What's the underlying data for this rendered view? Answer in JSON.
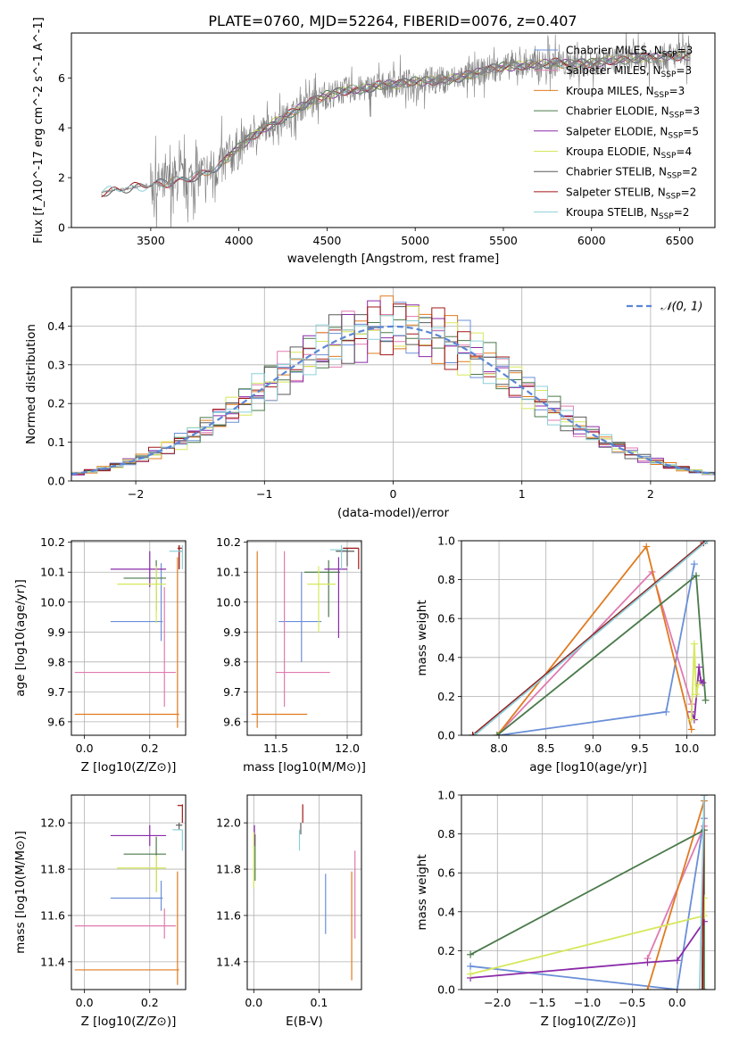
{
  "title": "PLATE=0760, MJD=52264, FIBERID=0076, z=0.407",
  "colors": {
    "Chabrier MILES": "#6a8fd8",
    "Salpeter MILES": "#e07ab0",
    "Kroupa MILES": "#e07b1f",
    "Chabrier ELODIE": "#4a7a4a",
    "Salpeter ELODIE": "#8a2aa8",
    "Kroupa ELODIE": "#d6e85a",
    "Chabrier STELIB": "#5a5a5a",
    "Salpeter STELIB": "#a01818",
    "Kroupa STELIB": "#8cd0d8",
    "data": "#808080"
  },
  "chart_data": [
    {
      "id": "spectrum",
      "type": "line",
      "xlabel": "wavelength [Angstrom, rest frame]",
      "ylabel": "Flux [f_λ10^-17 erg cm^-2 s^-1 A^-1]",
      "xlim": [
        3050,
        6700
      ],
      "ylim": [
        0,
        7.8
      ],
      "xticks": [
        3500,
        4000,
        4500,
        5000,
        5500,
        6000,
        6500
      ],
      "yticks": [
        0,
        2,
        4,
        6
      ],
      "legend": "top-right",
      "legend_entries": [
        {
          "label": "Chabrier MILES, N",
          "sub": "SSP",
          "suffix": "=3",
          "model": "Chabrier MILES"
        },
        {
          "label": "Salpeter MILES, N",
          "sub": "SSP",
          "suffix": "=3",
          "model": "Salpeter MILES"
        },
        {
          "label": "Kroupa MILES, N",
          "sub": "SSP",
          "suffix": "=3",
          "model": "Kroupa MILES"
        },
        {
          "label": "Chabrier ELODIE, N",
          "sub": "SSP",
          "suffix": "=3",
          "model": "Chabrier ELODIE"
        },
        {
          "label": "Salpeter ELODIE, N",
          "sub": "SSP",
          "suffix": "=5",
          "model": "Salpeter ELODIE"
        },
        {
          "label": "Kroupa ELODIE, N",
          "sub": "SSP",
          "suffix": "=4",
          "model": "Kroupa ELODIE"
        },
        {
          "label": "Chabrier STELIB, N",
          "sub": "SSP",
          "suffix": "=2",
          "model": "Chabrier STELIB"
        },
        {
          "label": "Salpeter STELIB, N",
          "sub": "SSP",
          "suffix": "=2",
          "model": "Salpeter STELIB"
        },
        {
          "label": "Kroupa STELIB, N",
          "sub": "SSP",
          "suffix": "=2",
          "model": "Kroupa STELIB"
        }
      ],
      "continuum": {
        "x": [
          3220,
          3300,
          3400,
          3500,
          3600,
          3700,
          3800,
          3900,
          3950,
          4000,
          4100,
          4200,
          4300,
          4400,
          4500,
          4600,
          4700,
          4800,
          4900,
          5000,
          5100,
          5200,
          5300,
          5400,
          5500,
          5600,
          5700,
          5800,
          5900,
          6000,
          6100,
          6200,
          6300,
          6400,
          6550
        ],
        "y": [
          1.4,
          1.5,
          1.6,
          1.7,
          1.8,
          1.95,
          2.15,
          2.5,
          2.9,
          3.2,
          3.8,
          4.2,
          4.6,
          5.0,
          5.3,
          5.5,
          5.55,
          5.7,
          5.75,
          5.85,
          5.9,
          5.95,
          6.1,
          6.3,
          6.45,
          6.5,
          6.55,
          6.6,
          6.55,
          6.6,
          6.7,
          6.75,
          6.8,
          6.85,
          6.9
        ]
      }
    },
    {
      "id": "residuals",
      "type": "line",
      "xlabel": "(data-model)/error",
      "ylabel": "Normed distribution",
      "xlim": [
        -2.5,
        2.5
      ],
      "ylim": [
        0,
        0.5
      ],
      "xticks": [
        -2,
        -1,
        0,
        1,
        2
      ],
      "yticks": [
        0.0,
        0.1,
        0.2,
        0.3,
        0.4
      ],
      "legend": "top-right",
      "legend_label": "𝒩(0, 1)",
      "grid": true
    },
    {
      "id": "age-vs-Z",
      "type": "scatter",
      "xlabel": "Z [log10(Z/Z⊙)]",
      "ylabel": "age [log10(age/yr)]",
      "xlim": [
        -0.04,
        0.31
      ],
      "ylim": [
        9.555,
        10.205
      ],
      "xticks": [
        0.0,
        0.2
      ],
      "yticks": [
        9.6,
        9.7,
        9.8,
        9.9,
        10.0,
        10.1,
        10.2
      ],
      "grid": true,
      "series": [
        {
          "model": "Chabrier MILES",
          "x": [
            0.08,
            0.24
          ],
          "y": 9.935,
          "yerr": [
            9.87,
            10.13
          ],
          "xc": 0.235
        },
        {
          "model": "Salpeter MILES",
          "x": [
            -0.03,
            0.28
          ],
          "y": 9.765,
          "yerr": [
            9.65,
            10.05
          ],
          "xc": 0.245
        },
        {
          "model": "Kroupa MILES",
          "x": [
            -0.03,
            0.29
          ],
          "y": 9.625,
          "yerr": [
            9.58,
            10.15
          ],
          "xc": 0.285
        },
        {
          "model": "Chabrier ELODIE",
          "x": [
            0.12,
            0.25
          ],
          "y": 10.08,
          "yerr": [
            9.97,
            10.14
          ],
          "xc": 0.22
        },
        {
          "model": "Salpeter ELODIE",
          "x": [
            0.08,
            0.25
          ],
          "y": 10.11,
          "yerr": [
            10.05,
            10.17
          ],
          "xc": 0.2
        },
        {
          "model": "Kroupa ELODIE",
          "x": [
            0.1,
            0.25
          ],
          "y": 10.06,
          "yerr": [
            9.93,
            10.12
          ],
          "xc": 0.22
        },
        {
          "model": "Chabrier STELIB",
          "x": [
            0.29,
            0.3
          ],
          "y": 10.17,
          "yerr": [
            10.11,
            10.19
          ],
          "xc": 0.29
        },
        {
          "model": "Salpeter STELIB",
          "x": [
            0.285,
            0.3
          ],
          "y": 10.18,
          "yerr": [
            10.11,
            10.19
          ],
          "xc": 0.29
        },
        {
          "model": "Kroupa STELIB",
          "x": [
            0.26,
            0.3
          ],
          "y": 10.17,
          "yerr": [
            10.11,
            10.19
          ],
          "xc": 0.3
        }
      ]
    },
    {
      "id": "age-vs-mass",
      "type": "scatter",
      "xlabel": "mass [log10(M/M⊙)]",
      "xlim": [
        11.3,
        12.1
      ],
      "ylim": [
        9.555,
        10.205
      ],
      "xticks": [
        11.5,
        12.0
      ],
      "yticks": [
        9.6,
        9.7,
        9.8,
        9.9,
        10.0,
        10.1,
        10.2
      ],
      "grid": true,
      "series": [
        {
          "model": "Chabrier MILES",
          "x": [
            11.52,
            11.82
          ],
          "y": 9.935,
          "yerr": [
            9.8,
            10.1
          ],
          "xc": 11.68
        },
        {
          "model": "Salpeter MILES",
          "x": [
            11.5,
            11.88
          ],
          "y": 9.765,
          "yerr": [
            9.65,
            10.17
          ],
          "xc": 11.56
        },
        {
          "model": "Kroupa MILES",
          "x": [
            11.33,
            11.72
          ],
          "y": 9.625,
          "yerr": [
            9.58,
            10.17
          ],
          "xc": 11.37
        },
        {
          "model": "Chabrier ELODIE",
          "x": [
            11.7,
            11.95
          ],
          "y": 10.1,
          "yerr": [
            9.95,
            10.14
          ],
          "xc": 11.87
        },
        {
          "model": "Salpeter ELODIE",
          "x": [
            11.84,
            12.0
          ],
          "y": 10.11,
          "yerr": [
            9.88,
            10.15
          ],
          "xc": 11.94
        },
        {
          "model": "Kroupa ELODIE",
          "x": [
            11.72,
            11.92
          ],
          "y": 10.06,
          "yerr": [
            9.9,
            10.12
          ],
          "xc": 11.8
        },
        {
          "model": "Chabrier STELIB",
          "x": [
            11.92,
            12.05
          ],
          "y": 10.17,
          "yerr": [
            10.12,
            10.18
          ],
          "xc": 12.0
        },
        {
          "model": "Salpeter STELIB",
          "x": [
            11.97,
            12.08
          ],
          "y": 10.18,
          "yerr": [
            10.11,
            10.18
          ],
          "xc": 12.08
        },
        {
          "model": "Kroupa STELIB",
          "x": [
            11.88,
            12.0
          ],
          "y": 10.175,
          "yerr": [
            10.11,
            10.19
          ],
          "xc": 11.96
        }
      ]
    },
    {
      "id": "mass-weight-vs-age",
      "type": "line",
      "xlabel": "age [log10(age/yr)]",
      "ylabel": "mass weight",
      "xlim": [
        7.6,
        10.3
      ],
      "ylim": [
        0,
        1.0
      ],
      "xticks": [
        8.0,
        8.5,
        9.0,
        9.5,
        10.0
      ],
      "yticks": [
        0.0,
        0.2,
        0.4,
        0.6,
        0.8,
        1.0
      ],
      "grid": true,
      "series": [
        {
          "model": "Chabrier MILES",
          "x": [
            8.0,
            9.78,
            10.08
          ],
          "y": [
            0.0,
            0.12,
            0.88
          ]
        },
        {
          "model": "Salpeter MILES",
          "x": [
            7.98,
            9.63,
            10.05
          ],
          "y": [
            0.0,
            0.84,
            0.16
          ]
        },
        {
          "model": "Kroupa MILES",
          "x": [
            7.98,
            9.57,
            10.05
          ],
          "y": [
            0.0,
            0.97,
            0.03
          ]
        },
        {
          "model": "Chabrier ELODIE",
          "x": [
            7.98,
            10.1,
            10.2
          ],
          "y": [
            0.0,
            0.82,
            0.18
          ]
        },
        {
          "model": "Salpeter ELODIE",
          "x": [
            10.05,
            10.08,
            10.13,
            10.15,
            10.17
          ],
          "y": [
            0.12,
            0.08,
            0.35,
            0.28,
            0.27
          ]
        },
        {
          "model": "Kroupa ELODIE",
          "x": [
            10.05,
            10.08,
            10.1,
            10.12
          ],
          "y": [
            0.08,
            0.47,
            0.21,
            0.26
          ]
        },
        {
          "model": "Chabrier STELIB",
          "x": [
            7.72,
            10.2
          ],
          "y": [
            0.0,
            1.0
          ]
        },
        {
          "model": "Salpeter STELIB",
          "x": [
            7.72,
            10.18
          ],
          "y": [
            0.0,
            0.99
          ]
        },
        {
          "model": "Kroupa STELIB",
          "x": [
            7.74,
            10.22
          ],
          "y": [
            0.0,
            1.0
          ]
        }
      ]
    },
    {
      "id": "mass-vs-Z",
      "type": "scatter",
      "xlabel": "Z [log10(Z/Z⊙)]",
      "ylabel": "mass [log10(M/M⊙)]",
      "xlim": [
        -0.04,
        0.31
      ],
      "ylim": [
        11.28,
        12.12
      ],
      "xticks": [
        0.0,
        0.2
      ],
      "yticks": [
        11.4,
        11.6,
        11.8,
        12.0
      ],
      "grid": true,
      "series": [
        {
          "model": "Chabrier MILES",
          "x": [
            0.08,
            0.24
          ],
          "y": 11.675,
          "yerr": [
            11.62,
            11.75
          ],
          "xc": 0.235
        },
        {
          "model": "Salpeter MILES",
          "x": [
            -0.03,
            0.28
          ],
          "y": 11.555,
          "yerr": [
            11.5,
            11.63
          ],
          "xc": 0.245
        },
        {
          "model": "Kroupa MILES",
          "x": [
            -0.03,
            0.29
          ],
          "y": 11.365,
          "yerr": [
            11.3,
            11.79
          ],
          "xc": 0.285
        },
        {
          "model": "Chabrier ELODIE",
          "x": [
            0.12,
            0.25
          ],
          "y": 11.865,
          "yerr": [
            11.7,
            11.94
          ],
          "xc": 0.22
        },
        {
          "model": "Salpeter ELODIE",
          "x": [
            0.08,
            0.25
          ],
          "y": 11.945,
          "yerr": [
            11.9,
            11.99
          ],
          "xc": 0.2
        },
        {
          "model": "Kroupa ELODIE",
          "x": [
            0.1,
            0.25
          ],
          "y": 11.805,
          "yerr": [
            11.7,
            11.86
          ],
          "xc": 0.22
        },
        {
          "model": "Chabrier STELIB",
          "x": [
            0.28,
            0.3
          ],
          "y": 11.99,
          "yerr": [
            11.97,
            12.0
          ],
          "xc": 0.29
        },
        {
          "model": "Salpeter STELIB",
          "x": [
            0.285,
            0.3
          ],
          "y": 12.075,
          "yerr": [
            12.0,
            12.08
          ],
          "xc": 0.3
        },
        {
          "model": "Kroupa STELIB",
          "x": [
            0.27,
            0.3
          ],
          "y": 11.97,
          "yerr": [
            11.88,
            11.97
          ],
          "xc": 0.3
        }
      ]
    },
    {
      "id": "mass-vs-EBV",
      "type": "scatter",
      "xlabel": "E(B-V)",
      "xlim": [
        -0.01,
        0.165
      ],
      "ylim": [
        11.28,
        12.12
      ],
      "xticks": [
        0.0,
        0.1
      ],
      "yticks": [
        11.4,
        11.6,
        11.8,
        12.0
      ],
      "grid": true,
      "series": [
        {
          "model": "Chabrier MILES",
          "x": 0.11,
          "yerr": [
            11.52,
            11.78
          ]
        },
        {
          "model": "Salpeter MILES",
          "x": 0.155,
          "yerr": [
            11.5,
            11.88
          ]
        },
        {
          "model": "Kroupa MILES",
          "x": 0.15,
          "yerr": [
            11.32,
            11.79
          ]
        },
        {
          "model": "Chabrier ELODIE",
          "x": 0.002,
          "yerr": [
            11.75,
            11.95
          ]
        },
        {
          "model": "Salpeter ELODIE",
          "x": 0.001,
          "yerr": [
            11.9,
            11.99
          ]
        },
        {
          "model": "Kroupa ELODIE",
          "x": 0.0,
          "yerr": [
            11.72,
            11.96
          ]
        },
        {
          "model": "Chabrier STELIB",
          "x": 0.072,
          "yerr": [
            11.95,
            12.0
          ]
        },
        {
          "model": "Salpeter STELIB",
          "x": 0.075,
          "yerr": [
            12.0,
            12.08
          ]
        },
        {
          "model": "Kroupa STELIB",
          "x": 0.07,
          "yerr": [
            11.88,
            11.97
          ]
        }
      ]
    },
    {
      "id": "mass-weight-vs-Z",
      "type": "line",
      "xlabel": "Z [log10(Z/Z⊙)]",
      "ylabel": "mass weight",
      "xlim": [
        -2.4,
        0.42
      ],
      "ylim": [
        0,
        1.0
      ],
      "xticks": [
        -2.0,
        -1.5,
        -1.0,
        -0.5,
        0.0
      ],
      "yticks": [
        0.0,
        0.2,
        0.4,
        0.6,
        0.8,
        1.0
      ],
      "grid": true,
      "series": [
        {
          "model": "Chabrier MILES",
          "x": [
            -2.3,
            0.0,
            0.3
          ],
          "y": [
            0.12,
            0.0,
            0.88
          ]
        },
        {
          "model": "Salpeter MILES",
          "x": [
            -0.33,
            0.3
          ],
          "y": [
            0.16,
            0.84
          ]
        },
        {
          "model": "Kroupa MILES",
          "x": [
            -0.33,
            0.3
          ],
          "y": [
            0.0,
            0.97
          ]
        },
        {
          "model": "Chabrier ELODIE",
          "x": [
            -2.3,
            0.3,
            0.3
          ],
          "y": [
            0.18,
            0.82,
            0.0
          ]
        },
        {
          "model": "Salpeter ELODIE",
          "x": [
            -2.3,
            -0.33,
            0.0,
            0.3
          ],
          "y": [
            0.06,
            0.14,
            0.15,
            0.35
          ]
        },
        {
          "model": "Kroupa ELODIE",
          "x": [
            -2.3,
            0.3,
            0.3
          ],
          "y": [
            0.08,
            0.38,
            0.47
          ]
        },
        {
          "model": "Chabrier STELIB",
          "x": [
            0.28,
            0.3
          ],
          "y": [
            0.0,
            1.0
          ]
        },
        {
          "model": "Salpeter STELIB",
          "x": [
            0.28,
            0.3
          ],
          "y": [
            0.0,
            1.0
          ]
        },
        {
          "model": "Kroupa STELIB",
          "x": [
            0.25,
            0.3
          ],
          "y": [
            0.0,
            1.0
          ]
        }
      ]
    }
  ]
}
